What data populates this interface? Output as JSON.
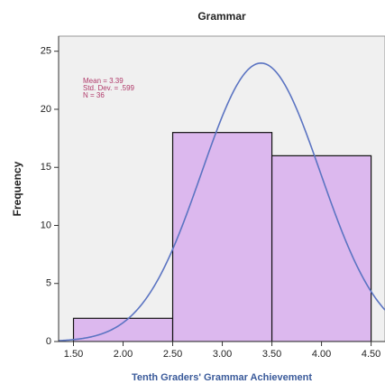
{
  "chart_data": {
    "type": "histogram",
    "title": "Grammar",
    "xlabel": "Tenth Graders' Grammar Achievement",
    "ylabel": "Frequency",
    "bins": [
      1.5,
      2.5,
      3.5,
      4.5
    ],
    "values": [
      2,
      18,
      16
    ],
    "color": "#dcb8ee",
    "xlim": [
      1.35,
      4.64
    ],
    "ylim": [
      0,
      26.3
    ],
    "xticks": [
      {
        "value": 1.5,
        "label": "1.50"
      },
      {
        "value": 2.0,
        "label": "2.00"
      },
      {
        "value": 2.5,
        "label": "2.50"
      },
      {
        "value": 3.0,
        "label": "3.00"
      },
      {
        "value": 3.5,
        "label": "3.50"
      },
      {
        "value": 4.0,
        "label": "4.00"
      },
      {
        "value": 4.5,
        "label": "4.50"
      }
    ],
    "yticks": [
      0,
      5,
      10,
      15,
      20,
      25
    ],
    "annotations": [
      "Mean = 3.39",
      "Std. Dev. = .599",
      "N = 36"
    ],
    "normal_curve": {
      "mean": 3.39,
      "std_dev": 0.599,
      "n": 36,
      "color": "#5b74c2"
    }
  }
}
